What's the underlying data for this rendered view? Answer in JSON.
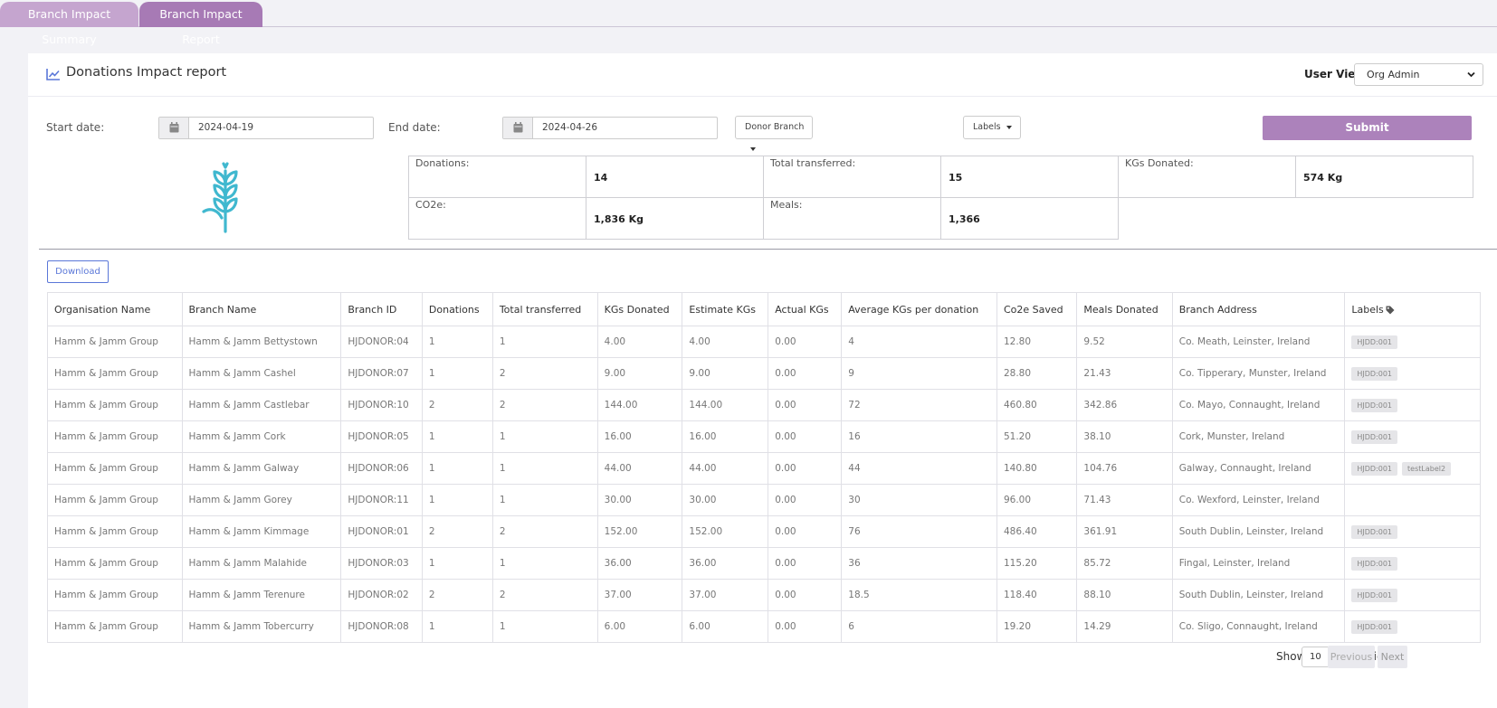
{
  "tabs": [
    {
      "label": "Branch Impact Summary"
    },
    {
      "label": "Branch Impact Report"
    }
  ],
  "header": {
    "title": "Donations Impact report",
    "user_view_label": "User View:",
    "user_view_value": "Org Admin"
  },
  "filters": {
    "start_label": "Start date:",
    "start_value": "2024-04-19",
    "end_label": "End date:",
    "end_value": "2024-04-26",
    "branch_btn": "Donor Branch",
    "labels_btn": "Labels",
    "submit": "Submit"
  },
  "stats": {
    "donations": {
      "label": "Donations:",
      "value": "14"
    },
    "transferred": {
      "label": "Total transferred:",
      "value": "15"
    },
    "kgs": {
      "label": "KGs Donated:",
      "value": "574 Kg"
    },
    "co2e": {
      "label": "CO2e:",
      "value": "1,836 Kg"
    },
    "meals": {
      "label": "Meals:",
      "value": "1,366"
    }
  },
  "download": "Download",
  "table": {
    "headers": [
      "Organisation Name",
      "Branch Name",
      "Branch ID",
      "Donations",
      "Total transferred",
      "KGs Donated",
      "Estimate KGs",
      "Actual KGs",
      "Average KGs per donation",
      "Co2e Saved",
      "Meals Donated",
      "Branch Address",
      "Labels"
    ],
    "rows": [
      [
        "Hamm & Jamm Group",
        "Hamm & Jamm Bettystown",
        "HJDONOR:04",
        "1",
        "1",
        "4.00",
        "4.00",
        "0.00",
        "4",
        "12.80",
        "9.52",
        "Co. Meath, Leinster, Ireland"
      ],
      [
        "Hamm & Jamm Group",
        "Hamm & Jamm Cashel",
        "HJDONOR:07",
        "1",
        "2",
        "9.00",
        "9.00",
        "0.00",
        "9",
        "28.80",
        "21.43",
        "Co. Tipperary, Munster, Ireland"
      ],
      [
        "Hamm & Jamm Group",
        "Hamm & Jamm Castlebar",
        "HJDONOR:10",
        "2",
        "2",
        "144.00",
        "144.00",
        "0.00",
        "72",
        "460.80",
        "342.86",
        "Co. Mayo, Connaught, Ireland"
      ],
      [
        "Hamm & Jamm Group",
        "Hamm & Jamm Cork",
        "HJDONOR:05",
        "1",
        "1",
        "16.00",
        "16.00",
        "0.00",
        "16",
        "51.20",
        "38.10",
        "Cork, Munster, Ireland"
      ],
      [
        "Hamm & Jamm Group",
        "Hamm & Jamm Galway",
        "HJDONOR:06",
        "1",
        "1",
        "44.00",
        "44.00",
        "0.00",
        "44",
        "140.80",
        "104.76",
        "Galway, Connaught, Ireland"
      ],
      [
        "Hamm & Jamm Group",
        "Hamm & Jamm Gorey",
        "HJDONOR:11",
        "1",
        "1",
        "30.00",
        "30.00",
        "0.00",
        "30",
        "96.00",
        "71.43",
        "Co. Wexford, Leinster, Ireland"
      ],
      [
        "Hamm & Jamm Group",
        "Hamm & Jamm Kimmage",
        "HJDONOR:01",
        "2",
        "2",
        "152.00",
        "152.00",
        "0.00",
        "76",
        "486.40",
        "361.91",
        "South Dublin, Leinster, Ireland"
      ],
      [
        "Hamm & Jamm Group",
        "Hamm & Jamm Malahide",
        "HJDONOR:03",
        "1",
        "1",
        "36.00",
        "36.00",
        "0.00",
        "36",
        "115.20",
        "85.72",
        "Fingal, Leinster, Ireland"
      ],
      [
        "Hamm & Jamm Group",
        "Hamm & Jamm Terenure",
        "HJDONOR:02",
        "2",
        "2",
        "37.00",
        "37.00",
        "0.00",
        "18.5",
        "118.40",
        "88.10",
        "South Dublin, Leinster, Ireland"
      ],
      [
        "Hamm & Jamm Group",
        "Hamm & Jamm Tobercurry",
        "HJDONOR:08",
        "1",
        "1",
        "6.00",
        "6.00",
        "0.00",
        "6",
        "19.20",
        "14.29",
        "Co. Sligo, Connaught, Ireland"
      ]
    ],
    "row_labels": [
      [
        "HJDD:001"
      ],
      [
        "HJDD:001"
      ],
      [
        "HJDD:001"
      ],
      [
        "HJDD:001"
      ],
      [
        "HJDD:001",
        "testLabel2"
      ],
      [],
      [
        "HJDD:001"
      ],
      [
        "HJDD:001"
      ],
      [
        "HJDD:001"
      ],
      [
        "HJDD:001"
      ]
    ]
  },
  "pagination": {
    "show": "Show",
    "entries_value": "10",
    "entries": "entries",
    "previous": "Previous",
    "next": "Next"
  },
  "colors": {
    "tab_inactive": "#c5a5cf",
    "tab_active": "#a77ab5",
    "submit": "#ac82bb",
    "accent_blue": "#5a77d8",
    "wheat": "#40b8cf"
  }
}
